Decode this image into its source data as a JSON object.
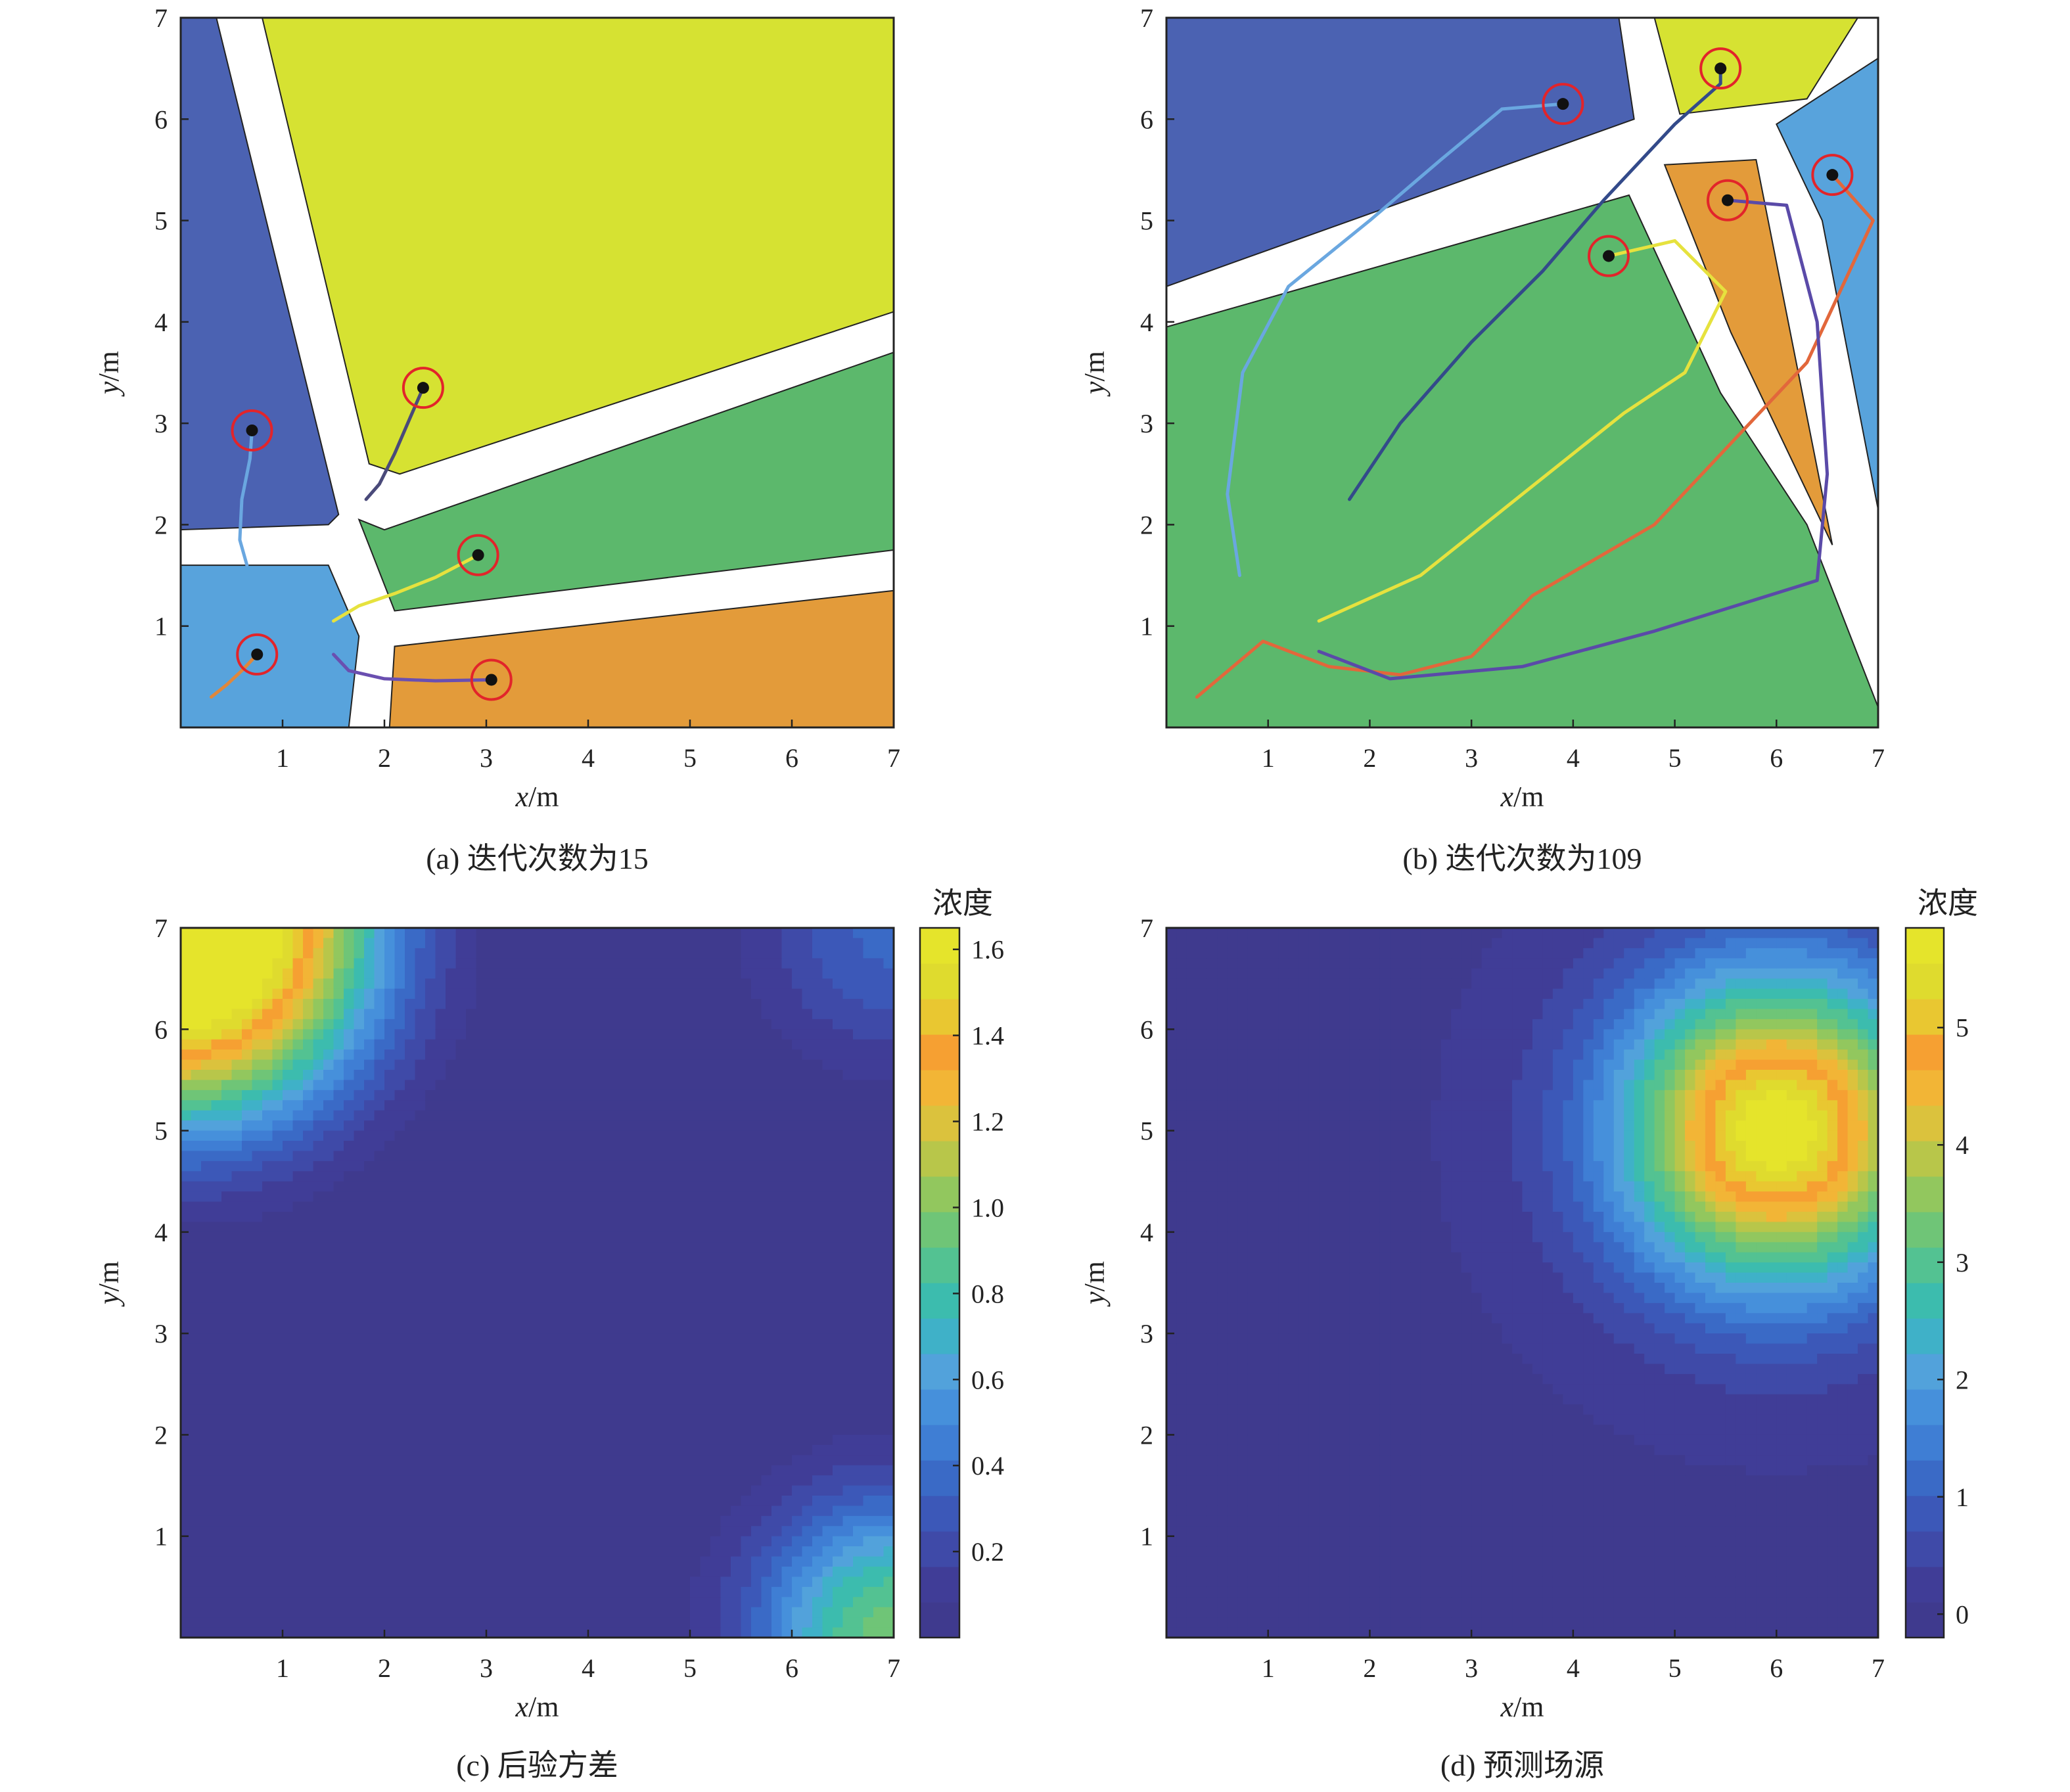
{
  "chart_data": [
    {
      "id": "a",
      "type": "voronoi-trajectory",
      "caption": "(a) 迭代次数为15",
      "xlabel_var": "x",
      "xlabel_unit": "/m",
      "ylabel_var": "y",
      "ylabel_unit": "/m",
      "xlim": [
        0,
        7
      ],
      "ylim": [
        0,
        7
      ],
      "xticks": [
        "1",
        "2",
        "3",
        "4",
        "5",
        "6",
        "7"
      ],
      "yticks": [
        "1",
        "2",
        "3",
        "4",
        "5",
        "6",
        "7"
      ],
      "cells": [
        {
          "name": "cell-darkblue",
          "color": "#4b62b2",
          "polygon": [
            [
              0,
              7
            ],
            [
              0.35,
              7
            ],
            [
              1.55,
              2.1
            ],
            [
              1.45,
              2.0
            ],
            [
              0,
              1.95
            ]
          ]
        },
        {
          "name": "cell-yellow",
          "color": "#d6e232",
          "polygon": [
            [
              0.8,
              7
            ],
            [
              7,
              7
            ],
            [
              7,
              4.1
            ],
            [
              2.15,
              2.5
            ],
            [
              1.85,
              2.6
            ]
          ]
        },
        {
          "name": "cell-green",
          "color": "#5cb86c",
          "polygon": [
            [
              7,
              3.7
            ],
            [
              2.0,
              1.95
            ],
            [
              1.75,
              2.05
            ],
            [
              2.1,
              1.15
            ],
            [
              7,
              1.75
            ]
          ]
        },
        {
          "name": "cell-orange",
          "color": "#e39b3a",
          "polygon": [
            [
              7,
              1.35
            ],
            [
              2.1,
              0.8
            ],
            [
              2.05,
              0
            ],
            [
              7,
              0
            ]
          ]
        },
        {
          "name": "cell-lightblue",
          "color": "#58a3dc",
          "polygon": [
            [
              0,
              1.6
            ],
            [
              1.45,
              1.6
            ],
            [
              1.75,
              0.9
            ],
            [
              1.65,
              0
            ],
            [
              0,
              0
            ]
          ]
        }
      ],
      "agents": [
        {
          "name": "agent-yellow",
          "color": "#4a4a7a",
          "position": [
            2.38,
            3.35
          ],
          "trail": [
            [
              1.82,
              2.25
            ],
            [
              1.95,
              2.4
            ],
            [
              2.1,
              2.7
            ],
            [
              2.25,
              3.05
            ],
            [
              2.38,
              3.35
            ]
          ]
        },
        {
          "name": "agent-blue",
          "color": "#6aa7e0",
          "position": [
            0.7,
            2.93
          ],
          "trail": [
            [
              0.65,
              1.6
            ],
            [
              0.58,
              1.85
            ],
            [
              0.6,
              2.25
            ],
            [
              0.68,
              2.65
            ],
            [
              0.7,
              2.93
            ]
          ]
        },
        {
          "name": "agent-green",
          "color": "#e6e23e",
          "position": [
            2.92,
            1.7
          ],
          "trail": [
            [
              1.5,
              1.05
            ],
            [
              1.75,
              1.2
            ],
            [
              2.1,
              1.32
            ],
            [
              2.5,
              1.48
            ],
            [
              2.92,
              1.7
            ]
          ]
        },
        {
          "name": "agent-lightblue",
          "color": "#e0873b",
          "position": [
            0.75,
            0.72
          ],
          "trail": [
            [
              0.3,
              0.3
            ],
            [
              0.45,
              0.42
            ],
            [
              0.6,
              0.56
            ],
            [
              0.75,
              0.72
            ]
          ]
        },
        {
          "name": "agent-orange",
          "color": "#6a4fb0",
          "position": [
            3.05,
            0.47
          ],
          "trail": [
            [
              1.5,
              0.72
            ],
            [
              1.65,
              0.56
            ],
            [
              2.0,
              0.48
            ],
            [
              2.5,
              0.46
            ],
            [
              3.05,
              0.47
            ]
          ]
        }
      ]
    },
    {
      "id": "b",
      "type": "voronoi-trajectory",
      "caption": "(b) 迭代次数为109",
      "xlabel_var": "x",
      "xlabel_unit": "/m",
      "ylabel_var": "y",
      "ylabel_unit": "/m",
      "xlim": [
        0,
        7
      ],
      "ylim": [
        0,
        7
      ],
      "xticks": [
        "1",
        "2",
        "3",
        "4",
        "5",
        "6",
        "7"
      ],
      "yticks": [
        "1",
        "2",
        "3",
        "4",
        "5",
        "6",
        "7"
      ],
      "cells": [
        {
          "name": "cell-darkblue",
          "color": "#4b62b2",
          "polygon": [
            [
              0,
              7
            ],
            [
              4.45,
              7
            ],
            [
              4.6,
              6.0
            ],
            [
              0,
              4.35
            ]
          ]
        },
        {
          "name": "cell-yellow",
          "color": "#d6e232",
          "polygon": [
            [
              4.8,
              7
            ],
            [
              6.8,
              7
            ],
            [
              6.3,
              6.2
            ],
            [
              5.05,
              6.05
            ]
          ]
        },
        {
          "name": "cell-lightblue",
          "color": "#58a3dc",
          "polygon": [
            [
              7,
              6.6
            ],
            [
              6.0,
              5.95
            ],
            [
              6.45,
              5.0
            ],
            [
              7,
              2.15
            ]
          ]
        },
        {
          "name": "cell-orange",
          "color": "#e39b3a",
          "polygon": [
            [
              4.9,
              5.55
            ],
            [
              5.8,
              5.6
            ],
            [
              6.55,
              1.8
            ],
            [
              5.55,
              3.9
            ]
          ]
        },
        {
          "name": "cell-green",
          "color": "#5cb86c",
          "polygon": [
            [
              0,
              3.95
            ],
            [
              4.55,
              5.25
            ],
            [
              5.45,
              3.3
            ],
            [
              6.3,
              2.0
            ],
            [
              7,
              0.2
            ],
            [
              7,
              0
            ],
            [
              0,
              0
            ]
          ]
        }
      ],
      "agents": [
        {
          "name": "agent-darkblue",
          "color": "#6aa7e0",
          "position": [
            3.9,
            6.15
          ],
          "trail": [
            [
              0.72,
              1.5
            ],
            [
              0.6,
              2.3
            ],
            [
              0.75,
              3.5
            ],
            [
              1.2,
              4.35
            ],
            [
              2.0,
              5.0
            ],
            [
              2.7,
              5.6
            ],
            [
              3.3,
              6.1
            ],
            [
              3.9,
              6.15
            ]
          ]
        },
        {
          "name": "agent-yellow",
          "color": "#334a8a",
          "position": [
            5.45,
            6.5
          ],
          "trail": [
            [
              1.8,
              2.25
            ],
            [
              2.3,
              3.0
            ],
            [
              3.0,
              3.8
            ],
            [
              3.7,
              4.5
            ],
            [
              4.3,
              5.2
            ],
            [
              5.0,
              5.95
            ],
            [
              5.45,
              6.35
            ],
            [
              5.45,
              6.5
            ]
          ]
        },
        {
          "name": "agent-lightblue",
          "color": "#e2673b",
          "position": [
            6.55,
            5.45
          ],
          "trail": [
            [
              0.3,
              0.3
            ],
            [
              0.95,
              0.85
            ],
            [
              1.6,
              0.6
            ],
            [
              2.3,
              0.52
            ],
            [
              3.0,
              0.7
            ],
            [
              3.6,
              1.3
            ],
            [
              4.8,
              2.0
            ],
            [
              6.3,
              3.6
            ],
            [
              6.95,
              5.0
            ],
            [
              6.55,
              5.45
            ]
          ]
        },
        {
          "name": "agent-orange",
          "color": "#5a4aa8",
          "position": [
            5.52,
            5.2
          ],
          "trail": [
            [
              1.5,
              0.75
            ],
            [
              2.2,
              0.48
            ],
            [
              3.5,
              0.6
            ],
            [
              4.8,
              0.95
            ],
            [
              6.4,
              1.45
            ],
            [
              6.5,
              2.5
            ],
            [
              6.4,
              4.0
            ],
            [
              6.1,
              5.15
            ],
            [
              5.52,
              5.2
            ]
          ]
        },
        {
          "name": "agent-green",
          "color": "#e6e23e",
          "position": [
            4.35,
            4.65
          ],
          "trail": [
            [
              1.5,
              1.05
            ],
            [
              2.5,
              1.5
            ],
            [
              3.5,
              2.3
            ],
            [
              4.5,
              3.1
            ],
            [
              5.1,
              3.5
            ],
            [
              5.5,
              4.3
            ],
            [
              5.0,
              4.8
            ],
            [
              4.35,
              4.65
            ]
          ]
        }
      ]
    },
    {
      "id": "c",
      "type": "heatmap",
      "caption": "(c) 后验方差",
      "colorbar_title": "浓度",
      "xlabel_var": "x",
      "xlabel_unit": "/m",
      "ylabel_var": "y",
      "ylabel_unit": "/m",
      "xlim": [
        0,
        7
      ],
      "ylim": [
        0,
        7
      ],
      "xticks": [
        "1",
        "2",
        "3",
        "4",
        "5",
        "6",
        "7"
      ],
      "yticks": [
        "1",
        "2",
        "3",
        "4",
        "5",
        "6",
        "7"
      ],
      "clim": [
        0,
        1.65
      ],
      "cbar_ticks": [
        "0.2",
        "0.4",
        "0.6",
        "0.8",
        "1.0",
        "1.2",
        "1.4",
        "1.6"
      ],
      "field_description": "high variance in the top-left corner, decaying diagonally; small rise at bottom-right corner"
    },
    {
      "id": "d",
      "type": "heatmap",
      "caption": "(d) 预测场源",
      "colorbar_title": "浓度",
      "xlabel_var": "x",
      "xlabel_unit": "/m",
      "ylabel_var": "y",
      "ylabel_unit": "/m",
      "xlim": [
        0,
        7
      ],
      "ylim": [
        0,
        7
      ],
      "xticks": [
        "1",
        "2",
        "3",
        "4",
        "5",
        "6",
        "7"
      ],
      "yticks": [
        "1",
        "2",
        "3",
        "4",
        "5",
        "6",
        "7"
      ],
      "clim": [
        -0.2,
        5.85
      ],
      "cbar_ticks": [
        "0",
        "1",
        "2",
        "3",
        "4",
        "5"
      ],
      "source": {
        "x": 6.0,
        "y": 5.0,
        "peak": 5.8
      }
    }
  ],
  "colormap": [
    "#3f3a8e",
    "#403d97",
    "#3f4aa8",
    "#3c58b8",
    "#3a6ac6",
    "#3f7ed4",
    "#4690db",
    "#52a2db",
    "#3fb1c8",
    "#3cbcae",
    "#53c292",
    "#6fc577",
    "#92c75e",
    "#b8c64a",
    "#dbc23d",
    "#f2b536",
    "#f6a032",
    "#e9c731",
    "#dfdb2e",
    "#e5e42b"
  ]
}
